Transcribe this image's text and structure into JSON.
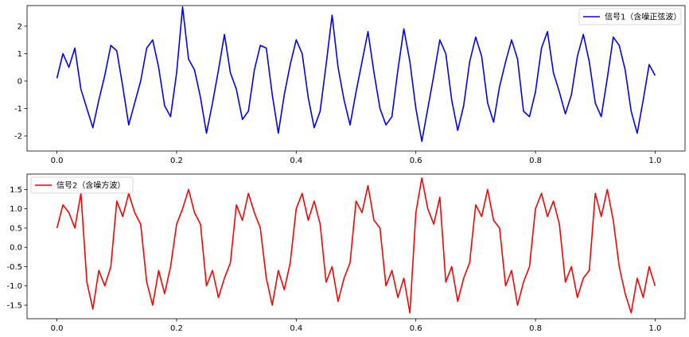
{
  "chart_data": [
    {
      "type": "line",
      "title": "",
      "xlabel": "",
      "ylabel": "",
      "xlim": [
        -0.05,
        1.05
      ],
      "ylim": [
        -2.55,
        2.75
      ],
      "xticks": [
        0.0,
        0.2,
        0.4,
        0.6,
        0.8,
        1.0
      ],
      "xtick_labels": [
        "0.0",
        "0.2",
        "0.4",
        "0.6",
        "0.8",
        "1.0"
      ],
      "yticks": [
        -2,
        -1,
        0,
        1,
        2
      ],
      "ytick_labels": [
        "-2",
        "-1",
        "0",
        "1",
        "2"
      ],
      "grid": false,
      "legend_position": "upper right",
      "series": [
        {
          "name": "信号1（含噪正弦波）",
          "color": "#0000ff",
          "x": [
            0.0,
            0.01,
            0.02,
            0.03,
            0.04,
            0.05,
            0.06,
            0.07,
            0.08,
            0.09,
            0.1,
            0.11,
            0.12,
            0.13,
            0.14,
            0.15,
            0.16,
            0.17,
            0.18,
            0.19,
            0.2,
            0.21,
            0.22,
            0.23,
            0.24,
            0.25,
            0.26,
            0.27,
            0.28,
            0.29,
            0.3,
            0.31,
            0.32,
            0.33,
            0.34,
            0.35,
            0.36,
            0.37,
            0.38,
            0.39,
            0.4,
            0.41,
            0.42,
            0.43,
            0.44,
            0.45,
            0.46,
            0.47,
            0.48,
            0.49,
            0.5,
            0.51,
            0.52,
            0.53,
            0.54,
            0.55,
            0.56,
            0.57,
            0.58,
            0.59,
            0.6,
            0.61,
            0.62,
            0.63,
            0.64,
            0.65,
            0.66,
            0.67,
            0.68,
            0.69,
            0.7,
            0.71,
            0.72,
            0.73,
            0.74,
            0.75,
            0.76,
            0.77,
            0.78,
            0.79,
            0.8,
            0.81,
            0.82,
            0.83,
            0.84,
            0.85,
            0.86,
            0.87,
            0.88,
            0.89,
            0.9,
            0.91,
            0.92,
            0.93,
            0.94,
            0.95,
            0.96,
            0.97,
            0.98,
            0.99,
            1.0
          ],
          "y": [
            0.1,
            1.0,
            0.5,
            1.2,
            -0.3,
            -1.0,
            -1.7,
            -0.7,
            0.2,
            1.3,
            1.1,
            -0.2,
            -1.6,
            -0.8,
            0.0,
            1.2,
            1.5,
            0.5,
            -0.9,
            -1.3,
            0.3,
            2.7,
            0.8,
            0.4,
            -0.6,
            -1.9,
            -0.8,
            0.4,
            1.7,
            0.3,
            -0.3,
            -1.4,
            -1.1,
            0.4,
            1.3,
            1.2,
            -0.5,
            -1.9,
            -0.5,
            0.6,
            1.5,
            1.0,
            -0.6,
            -1.7,
            -1.1,
            0.6,
            2.4,
            0.5,
            -0.7,
            -1.6,
            -0.4,
            0.7,
            1.8,
            0.3,
            -1.0,
            -1.6,
            -1.3,
            0.4,
            1.9,
            0.7,
            -1.0,
            -2.2,
            -1.0,
            0.2,
            1.5,
            1.0,
            -0.7,
            -1.8,
            -0.9,
            0.7,
            1.6,
            0.9,
            -0.8,
            -1.5,
            -0.2,
            0.7,
            1.5,
            0.8,
            -1.1,
            -1.3,
            -0.4,
            1.2,
            1.8,
            0.3,
            -0.4,
            -1.2,
            -0.5,
            0.9,
            1.7,
            0.7,
            -0.8,
            -1.3,
            0.1,
            1.6,
            1.3,
            0.4,
            -1.1,
            -1.9,
            -0.7,
            0.6,
            0.2
          ]
        }
      ]
    },
    {
      "type": "line",
      "title": "",
      "xlabel": "",
      "ylabel": "",
      "xlim": [
        -0.05,
        1.05
      ],
      "ylim": [
        -1.85,
        1.9
      ],
      "xticks": [
        0.0,
        0.2,
        0.4,
        0.6,
        0.8,
        1.0
      ],
      "xtick_labels": [
        "0.0",
        "0.2",
        "0.4",
        "0.6",
        "0.8",
        "1.0"
      ],
      "yticks": [
        -1.5,
        -1.0,
        -0.5,
        0.0,
        0.5,
        1.0,
        1.5
      ],
      "ytick_labels": [
        "-1.5",
        "-1.0",
        "-0.5",
        "0.0",
        "0.5",
        "1.0",
        "1.5"
      ],
      "grid": false,
      "legend_position": "upper left",
      "series": [
        {
          "name": "信号2（含噪方波）",
          "color": "#ff0000",
          "x": [
            0.0,
            0.01,
            0.02,
            0.03,
            0.04,
            0.05,
            0.06,
            0.07,
            0.08,
            0.09,
            0.1,
            0.11,
            0.12,
            0.13,
            0.14,
            0.15,
            0.16,
            0.17,
            0.18,
            0.19,
            0.2,
            0.21,
            0.22,
            0.23,
            0.24,
            0.25,
            0.26,
            0.27,
            0.28,
            0.29,
            0.3,
            0.31,
            0.32,
            0.33,
            0.34,
            0.35,
            0.36,
            0.37,
            0.38,
            0.39,
            0.4,
            0.41,
            0.42,
            0.43,
            0.44,
            0.45,
            0.46,
            0.47,
            0.48,
            0.49,
            0.5,
            0.51,
            0.52,
            0.53,
            0.54,
            0.55,
            0.56,
            0.57,
            0.58,
            0.59,
            0.6,
            0.61,
            0.62,
            0.63,
            0.64,
            0.65,
            0.66,
            0.67,
            0.68,
            0.69,
            0.7,
            0.71,
            0.72,
            0.73,
            0.74,
            0.75,
            0.76,
            0.77,
            0.78,
            0.79,
            0.8,
            0.81,
            0.82,
            0.83,
            0.84,
            0.85,
            0.86,
            0.87,
            0.88,
            0.89,
            0.9,
            0.91,
            0.92,
            0.93,
            0.94,
            0.95,
            0.96,
            0.97,
            0.98,
            0.99,
            1.0
          ],
          "y": [
            0.5,
            1.1,
            0.9,
            0.5,
            1.4,
            -0.9,
            -1.6,
            -0.6,
            -1.0,
            -0.5,
            1.2,
            0.8,
            1.4,
            0.9,
            0.6,
            -0.9,
            -1.5,
            -0.6,
            -1.2,
            -0.5,
            0.6,
            1.0,
            1.5,
            0.9,
            0.6,
            -1.0,
            -0.6,
            -1.3,
            -0.8,
            -0.4,
            1.1,
            0.7,
            1.4,
            0.9,
            0.5,
            -0.8,
            -1.5,
            -0.6,
            -1.1,
            -0.4,
            1.0,
            1.4,
            0.7,
            1.2,
            0.6,
            -0.9,
            -0.5,
            -1.4,
            -0.8,
            -0.4,
            1.2,
            0.9,
            1.6,
            0.7,
            0.5,
            -1.0,
            -0.6,
            -1.3,
            -0.8,
            -1.7,
            0.9,
            1.8,
            1.0,
            0.6,
            1.3,
            -0.9,
            -0.5,
            -1.4,
            -0.8,
            -0.4,
            1.1,
            0.8,
            1.5,
            0.7,
            0.5,
            -1.0,
            -0.6,
            -1.5,
            -0.9,
            -0.5,
            1.0,
            1.4,
            0.8,
            1.2,
            0.6,
            -0.9,
            -0.5,
            -1.3,
            -0.8,
            -0.6,
            1.4,
            0.8,
            1.5,
            0.7,
            -0.5,
            -1.2,
            -1.7,
            -0.8,
            -1.3,
            -0.5,
            -1.0
          ]
        }
      ]
    }
  ]
}
